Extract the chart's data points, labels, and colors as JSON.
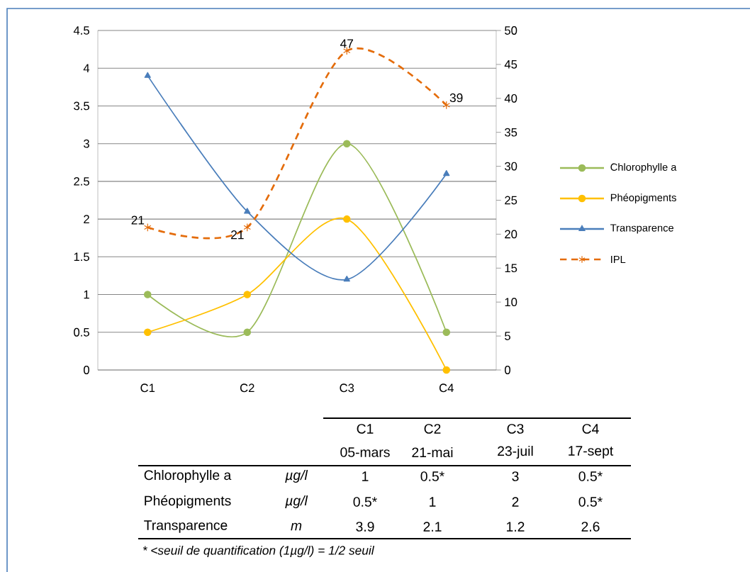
{
  "chart_data": [
    {
      "type": "line",
      "categories": [
        "C1",
        "C2",
        "C3",
        "C4"
      ],
      "ylim": [
        0,
        4.5
      ],
      "yticks": [
        0,
        0.5,
        1,
        1.5,
        2,
        2.5,
        3,
        3.5,
        4,
        4.5
      ],
      "y2lim": [
        0,
        50
      ],
      "y2ticks": [
        0,
        5,
        10,
        15,
        20,
        25,
        30,
        35,
        40,
        45,
        50
      ],
      "grid": "y",
      "legend": "right",
      "series": [
        {
          "name": "Chlorophylle a",
          "color": "#9bbb59",
          "values": [
            1,
            0.5,
            3,
            0.5
          ],
          "marker": "circle",
          "line_style": "solid"
        },
        {
          "name": "Phéopigments",
          "color": "#ffc000",
          "values": [
            0.5,
            1,
            2,
            0
          ],
          "marker": "circle",
          "line_style": "solid"
        },
        {
          "name": "Transparence",
          "color": "#4a7ebb",
          "values": [
            3.9,
            2.1,
            1.2,
            2.6
          ],
          "marker": "triangle",
          "line_style": "solid"
        },
        {
          "name": "IPL",
          "color": "#e46c0a",
          "values": [
            21,
            21,
            47,
            39
          ],
          "marker": "cross",
          "line_style": "dashed",
          "axis": "y2",
          "value_labels": [
            "21",
            "21",
            "47",
            "39"
          ]
        }
      ]
    },
    {
      "type": "other",
      "categories": [
        "C1",
        "C2",
        "C3",
        "C4"
      ],
      "y_categories": [
        null,
        "Chlorophylle a",
        "Phéopigments",
        "Transparence"
      ],
      "y2_categories": [
        null,
        "µg/l",
        "µg/l",
        "m"
      ],
      "cell_labels": [
        [
          "05-mars",
          "21-mai",
          "23-juil",
          "17-sept"
        ],
        [
          "1",
          "0.5*",
          "3",
          "0.5*"
        ],
        [
          "0.5*",
          "1",
          "2",
          "0.5*"
        ],
        [
          "3.9",
          "2.1",
          "1.2",
          "2.6"
        ]
      ],
      "annotations": [
        "* <seuil de quantification (1µg/l) = 1/2 seuil"
      ]
    }
  ]
}
